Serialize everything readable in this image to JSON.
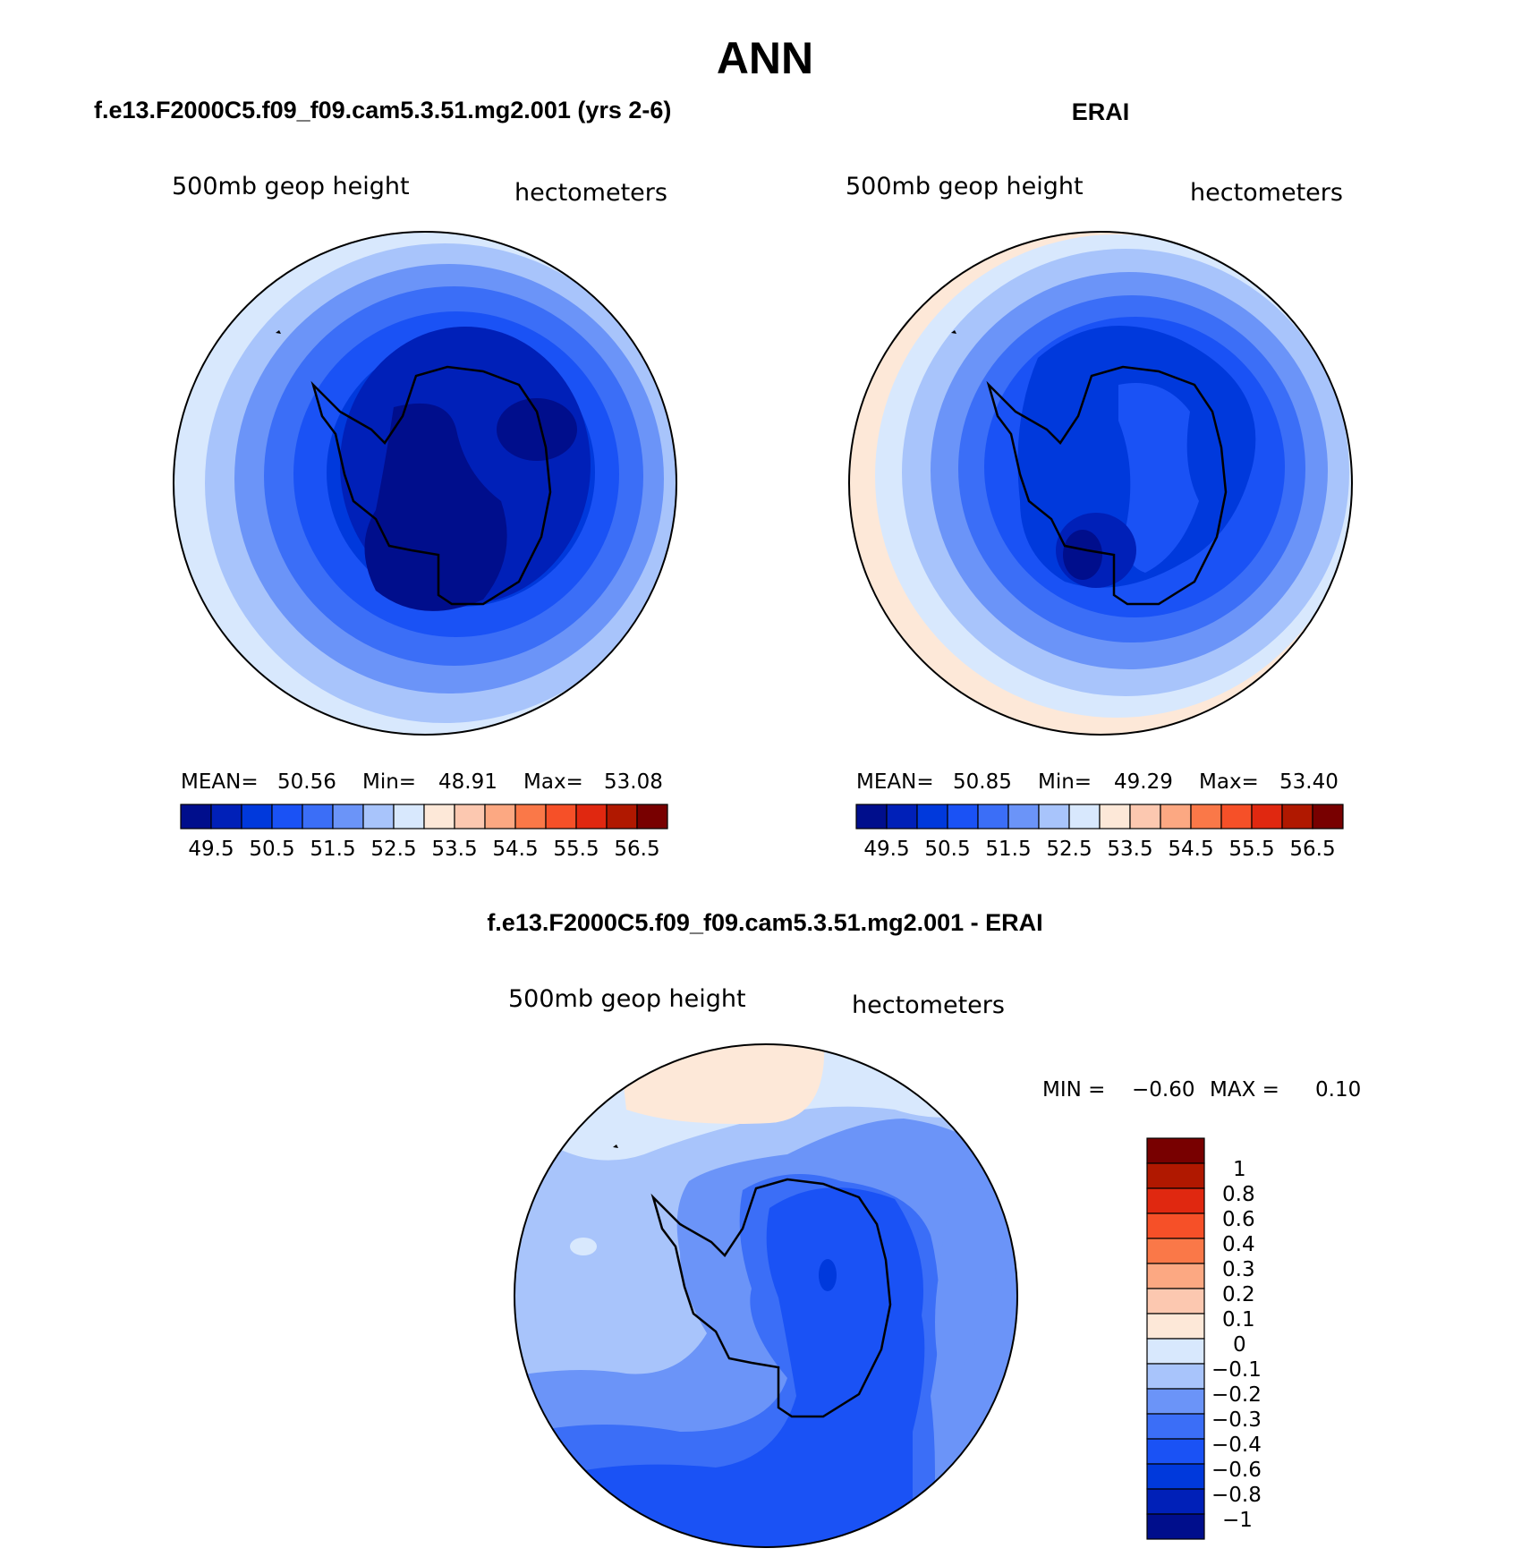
{
  "title": "ANN",
  "panels": [
    {
      "title": "f.e13.F2000C5.f09_f09.cam5.3.51.mg2.001 (yrs 2-6)",
      "field_label": "500mb geop height",
      "units": "hectometers",
      "stats": {
        "mean_label": "MEAN=",
        "mean": "50.56",
        "min_label": "Min=",
        "min": "48.91",
        "max_label": "Max=",
        "max": "53.08"
      },
      "colorbar_labels": [
        "49.5",
        "50.5",
        "51.5",
        "52.5",
        "53.5",
        "54.5",
        "55.5",
        "56.5"
      ]
    },
    {
      "title": "ERAI",
      "field_label": "500mb geop height",
      "units": "hectometers",
      "stats": {
        "mean_label": "MEAN=",
        "mean": "50.85",
        "min_label": "Min=",
        "min": "49.29",
        "max_label": "Max=",
        "max": "53.40"
      },
      "colorbar_labels": [
        "49.5",
        "50.5",
        "51.5",
        "52.5",
        "53.5",
        "54.5",
        "55.5",
        "56.5"
      ]
    },
    {
      "title": "f.e13.F2000C5.f09_f09.cam5.3.51.mg2.001 - ERAI",
      "field_label": "500mb geop height",
      "units": "hectometers",
      "stats": {
        "min_label": "MIN =",
        "min": "−0.60",
        "max_label": "MAX =",
        "max": "0.10"
      },
      "colorbar_labels": [
        "1",
        "0.8",
        "0.6",
        "0.4",
        "0.3",
        "0.2",
        "0.1",
        "0",
        "−0.1",
        "−0.2",
        "−0.3",
        "−0.4",
        "−0.6",
        "−0.8",
        "−1"
      ]
    }
  ],
  "colors": {
    "full_field_scale": [
      "#000e8c",
      "#0020b8",
      "#0039dc",
      "#1a52f5",
      "#3b6ef7",
      "#6b94f8",
      "#a8c4fb",
      "#d8e8fd",
      "#fde8d8",
      "#fcc8b0",
      "#fca882",
      "#fa7848",
      "#f65028",
      "#e02810",
      "#b01800",
      "#780000"
    ],
    "diff_scale": [
      "#780000",
      "#b01800",
      "#e02810",
      "#f65028",
      "#fa7848",
      "#fca882",
      "#fcc8b0",
      "#fde8d8",
      "#d8e8fd",
      "#a8c4fb",
      "#6b94f8",
      "#3b6ef7",
      "#1a52f5",
      "#0039dc",
      "#0020b8",
      "#000e8c"
    ]
  }
}
